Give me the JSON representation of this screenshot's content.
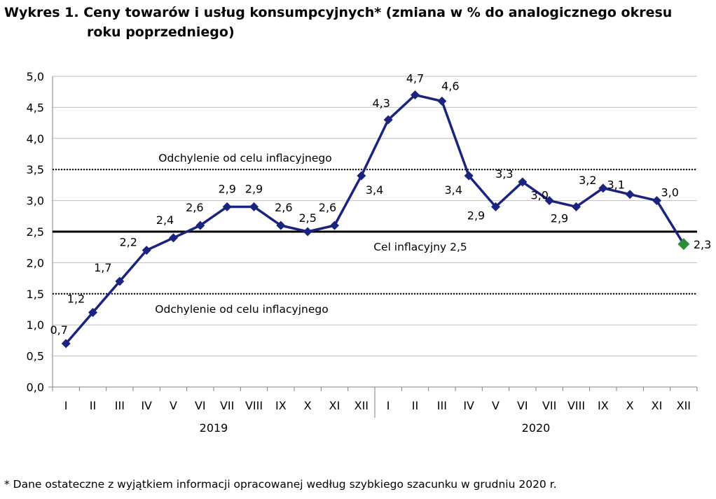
{
  "chart_data": {
    "type": "line",
    "title_line1": "Wykres 1. Ceny towarów i usług konsumpcyjnych* (zmiana w % do analogicznego okresu",
    "title_line2": "roku poprzedniego)",
    "categories": [
      "I",
      "II",
      "III",
      "IV",
      "V",
      "VI",
      "VII",
      "VIII",
      "IX",
      "X",
      "XI",
      "XII",
      "I",
      "II",
      "III",
      "IV",
      "V",
      "VI",
      "VII",
      "VIII",
      "IX",
      "X",
      "XI",
      "XII"
    ],
    "years": [
      "2019",
      "2020"
    ],
    "values": [
      0.7,
      1.2,
      1.7,
      2.2,
      2.4,
      2.6,
      2.9,
      2.9,
      2.6,
      2.5,
      2.6,
      3.4,
      4.3,
      4.7,
      4.6,
      3.4,
      2.9,
      3.3,
      3.0,
      2.9,
      3.2,
      3.1,
      3.0,
      2.3
    ],
    "value_labels": [
      "0,7",
      "1,2",
      "1,7",
      "2,2",
      "2,4",
      "2,6",
      "2,9",
      "2,9",
      "2,6",
      "2,5",
      "2,6",
      "3,4",
      "4,3",
      "4,7",
      "4,6",
      "3,4",
      "2,9",
      "3,3",
      "3,0",
      "2,9",
      "3,2",
      "3,1",
      "3,0",
      "2,3"
    ],
    "y_ticks": [
      0.0,
      0.5,
      1.0,
      1.5,
      2.0,
      2.5,
      3.0,
      3.5,
      4.0,
      4.5,
      5.0
    ],
    "y_tick_labels": [
      "0,0",
      "0,5",
      "1,0",
      "1,5",
      "2,0",
      "2,5",
      "3,0",
      "3,5",
      "4,0",
      "4,5",
      "5,0"
    ],
    "ylim": [
      0,
      5
    ],
    "grid": true,
    "reference_lines": [
      {
        "value": 3.5,
        "style": "dotted",
        "label": "Odchylenie od celu inflacyjnego"
      },
      {
        "value": 2.5,
        "style": "solid",
        "label": "Cel inflacyjny 2,5"
      },
      {
        "value": 1.5,
        "style": "dotted",
        "label": "Odchylenie od celu inflacyjnego"
      }
    ],
    "colors": {
      "series": "#1a237e",
      "last_point": "#2e8b3c",
      "grid": "#bfbfbf",
      "reference": "#000000"
    }
  },
  "footnote": "* Dane ostateczne z wyjątkiem informacji opracowanej według szybkiego szacunku w grudniu 2020 r."
}
